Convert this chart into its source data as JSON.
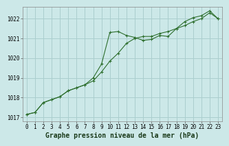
{
  "title": "Graphe pression niveau de la mer (hPa)",
  "bg_color": "#cce8e8",
  "grid_color": "#aacece",
  "line_color": "#2d6e2d",
  "marker_color": "#2d6e2d",
  "ylim": [
    1016.8,
    1022.6
  ],
  "xlim": [
    -0.5,
    23.5
  ],
  "yticks": [
    1017,
    1018,
    1019,
    1020,
    1021,
    1022
  ],
  "xticks": [
    0,
    1,
    2,
    3,
    4,
    5,
    6,
    7,
    8,
    9,
    10,
    11,
    12,
    13,
    14,
    15,
    16,
    17,
    18,
    19,
    20,
    21,
    22,
    23
  ],
  "series1_x": [
    0,
    1,
    2,
    3,
    4,
    5,
    6,
    7,
    8,
    9,
    10,
    11,
    12,
    13,
    14,
    15,
    16,
    17,
    18,
    19,
    20,
    21,
    22,
    23
  ],
  "series1_y": [
    1017.15,
    1017.25,
    1017.75,
    1017.9,
    1018.05,
    1018.35,
    1018.5,
    1018.65,
    1018.85,
    1019.3,
    1019.85,
    1020.25,
    1020.75,
    1021.0,
    1021.1,
    1021.1,
    1021.25,
    1021.35,
    1021.5,
    1021.65,
    1021.85,
    1022.0,
    1022.3,
    1022.0
  ],
  "series2_x": [
    0,
    1,
    2,
    3,
    4,
    5,
    6,
    7,
    8,
    9,
    10,
    11,
    12,
    13,
    14,
    15,
    16,
    17,
    18,
    19,
    20,
    21,
    22,
    23
  ],
  "series2_y": [
    1017.15,
    1017.25,
    1017.75,
    1017.9,
    1018.05,
    1018.35,
    1018.5,
    1018.65,
    1019.0,
    1019.7,
    1021.3,
    1021.35,
    1021.15,
    1021.05,
    1020.9,
    1020.95,
    1021.15,
    1021.1,
    1021.5,
    1021.85,
    1022.05,
    1022.15,
    1022.4,
    1022.0
  ],
  "title_fontsize": 7.0,
  "tick_fontsize": 5.5
}
